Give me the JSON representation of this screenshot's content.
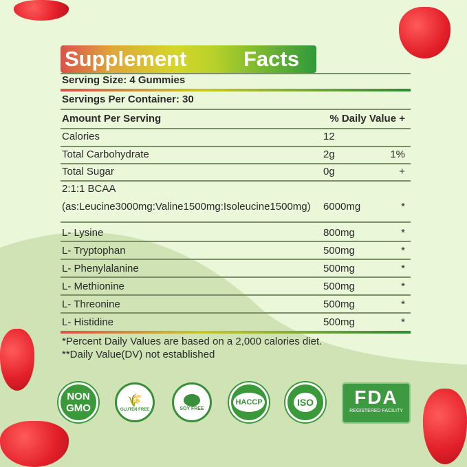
{
  "title": {
    "left": "Supplement",
    "right": "Facts"
  },
  "serving_size": "Serving Size: 4 Gummies",
  "servings_per_container": "Servings Per Container: 30",
  "header": {
    "amount": "Amount Per Serving",
    "dv": "% Daily Value +"
  },
  "rows": [
    {
      "name": "Calories",
      "amount": "12",
      "dv": ""
    },
    {
      "name": "Total Carbohydrate",
      "amount": "2g",
      "dv": "1%"
    },
    {
      "name": "Total Sugar",
      "amount": "0g",
      "dv": "+"
    },
    {
      "name": "2:1:1 BCAA",
      "amount": "",
      "dv": ""
    },
    {
      "name": "(as:Leucine3000mg:Valine1500mg:Isoleucine1500mg)",
      "amount": "6000mg",
      "dv": "*"
    },
    {
      "name": "L- Lysine",
      "amount": "800mg",
      "dv": "*"
    },
    {
      "name": "L- Tryptophan",
      "amount": "500mg",
      "dv": "*"
    },
    {
      "name": "L- Phenylalanine",
      "amount": "500mg",
      "dv": "*"
    },
    {
      "name": "L- Methionine",
      "amount": "500mg",
      "dv": "*"
    },
    {
      "name": "L- Threonine",
      "amount": "500mg",
      "dv": "*"
    },
    {
      "name": "L- Histidine",
      "amount": "500mg",
      "dv": "*"
    }
  ],
  "footnotes": [
    "*Percent Daily Values are based on a 2,000 calories diet.",
    "**Daily Value(DV) not established"
  ],
  "badges": {
    "non_gmo": [
      "NON",
      "GMO"
    ],
    "gluten": "GLUTEN FREE",
    "soy": "SOY FREE",
    "haccp": "HACCP",
    "iso": "ISO",
    "fda": "FDA",
    "fda_sub": "REGISTERED FACILITY"
  },
  "colors": {
    "brand_green": "#3a9a3a",
    "strawberry": "#e3202a"
  }
}
